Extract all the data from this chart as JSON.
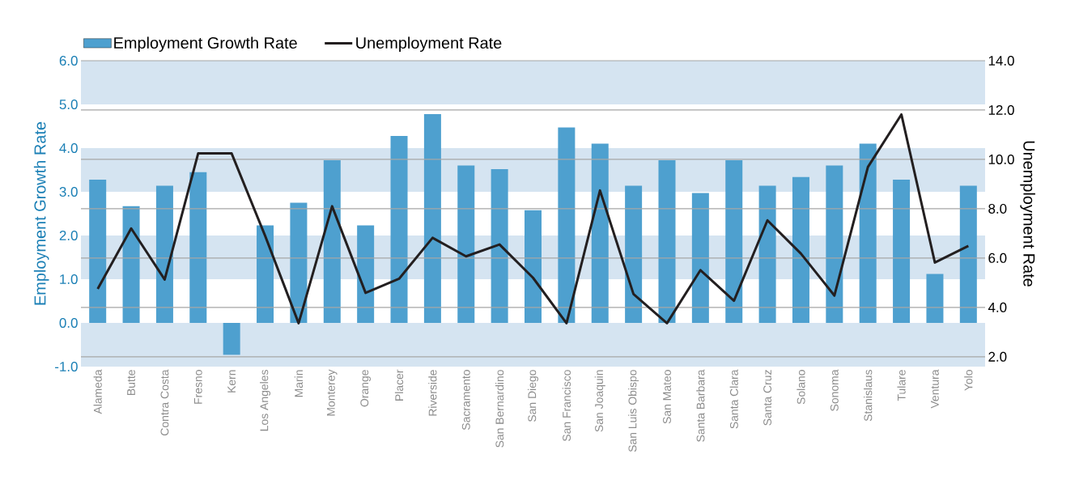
{
  "chart_data": {
    "type": "bar",
    "categories": [
      "Alameda",
      "Butte",
      "Contra Costa",
      "Fresno",
      "Kern",
      "Los Angeles",
      "Marin",
      "Monterey",
      "Orange",
      "Placer",
      "Riverside",
      "Sacramento",
      "San Bernardino",
      "San Diego",
      "San Francisco",
      "San Joaquin",
      "San Luis Obispo",
      "San Mateo",
      "Santa Barbara",
      "Santa Clara",
      "Santa Cruz",
      "Solano",
      "Sonoma",
      "Stanislaus",
      "Tulare",
      "Ventura",
      "Yolo"
    ],
    "series": [
      {
        "name": "Employment Growth Rate",
        "color": "#4ea0cf",
        "values": [
          3.28,
          2.67,
          3.14,
          3.45,
          -0.73,
          2.23,
          2.75,
          3.72,
          2.23,
          4.28,
          4.78,
          3.6,
          3.52,
          2.58,
          4.47,
          4.1,
          3.14,
          3.72,
          2.97,
          3.72,
          3.14,
          3.34,
          3.6,
          4.1,
          3.28,
          1.12,
          3.14
        ]
      },
      {
        "name": "Unemployment Rate",
        "type": "line",
        "axis": "y2",
        "color": "#231f20",
        "values": [
          4.75,
          7.2,
          5.13,
          10.24,
          10.24,
          6.9,
          3.36,
          8.1,
          4.59,
          5.16,
          6.82,
          6.07,
          6.55,
          5.2,
          3.36,
          8.74,
          4.54,
          3.36,
          5.51,
          4.27,
          7.53,
          6.18,
          4.48,
          9.69,
          11.82,
          5.82,
          6.49
        ]
      }
    ],
    "ylabel": "Employment Growth Rate",
    "y2label": "Unemployment Rate",
    "ylim": [
      -1.0,
      6.0
    ],
    "yticks": [
      {
        "value": -1,
        "label": "-1.0"
      },
      {
        "value": 0,
        "label": "0.0"
      },
      {
        "value": 1,
        "label": "1.0"
      },
      {
        "value": 2,
        "label": "2.0"
      },
      {
        "value": 3,
        "label": "3.0"
      },
      {
        "value": 4,
        "label": "4.0"
      },
      {
        "value": 5,
        "label": "5.0"
      },
      {
        "value": 6,
        "label": "6.0"
      }
    ],
    "y2lim": [
      1.6,
      14.0
    ],
    "y2ticks": [
      {
        "value": 2,
        "label": "2.0"
      },
      {
        "value": 4,
        "label": "4.0"
      },
      {
        "value": 6,
        "label": "6.0"
      },
      {
        "value": 8,
        "label": "8.0"
      },
      {
        "value": 10,
        "label": "10.0"
      },
      {
        "value": 12,
        "label": "12.0"
      },
      {
        "value": 14,
        "label": "14.0"
      }
    ],
    "bands": [
      {
        "axis": "y",
        "from": 5,
        "to": 6,
        "color": "#d5e4f1"
      },
      {
        "axis": "y",
        "from": 3,
        "to": 4,
        "color": "#d5e4f1"
      },
      {
        "axis": "y",
        "from": 1,
        "to": 2,
        "color": "#d5e4f1"
      },
      {
        "axis": "y",
        "from": -1,
        "to": 0,
        "color": "#d5e4f1"
      }
    ],
    "grid": true,
    "legend": "top left",
    "line_style": "solid",
    "marker": "none"
  }
}
